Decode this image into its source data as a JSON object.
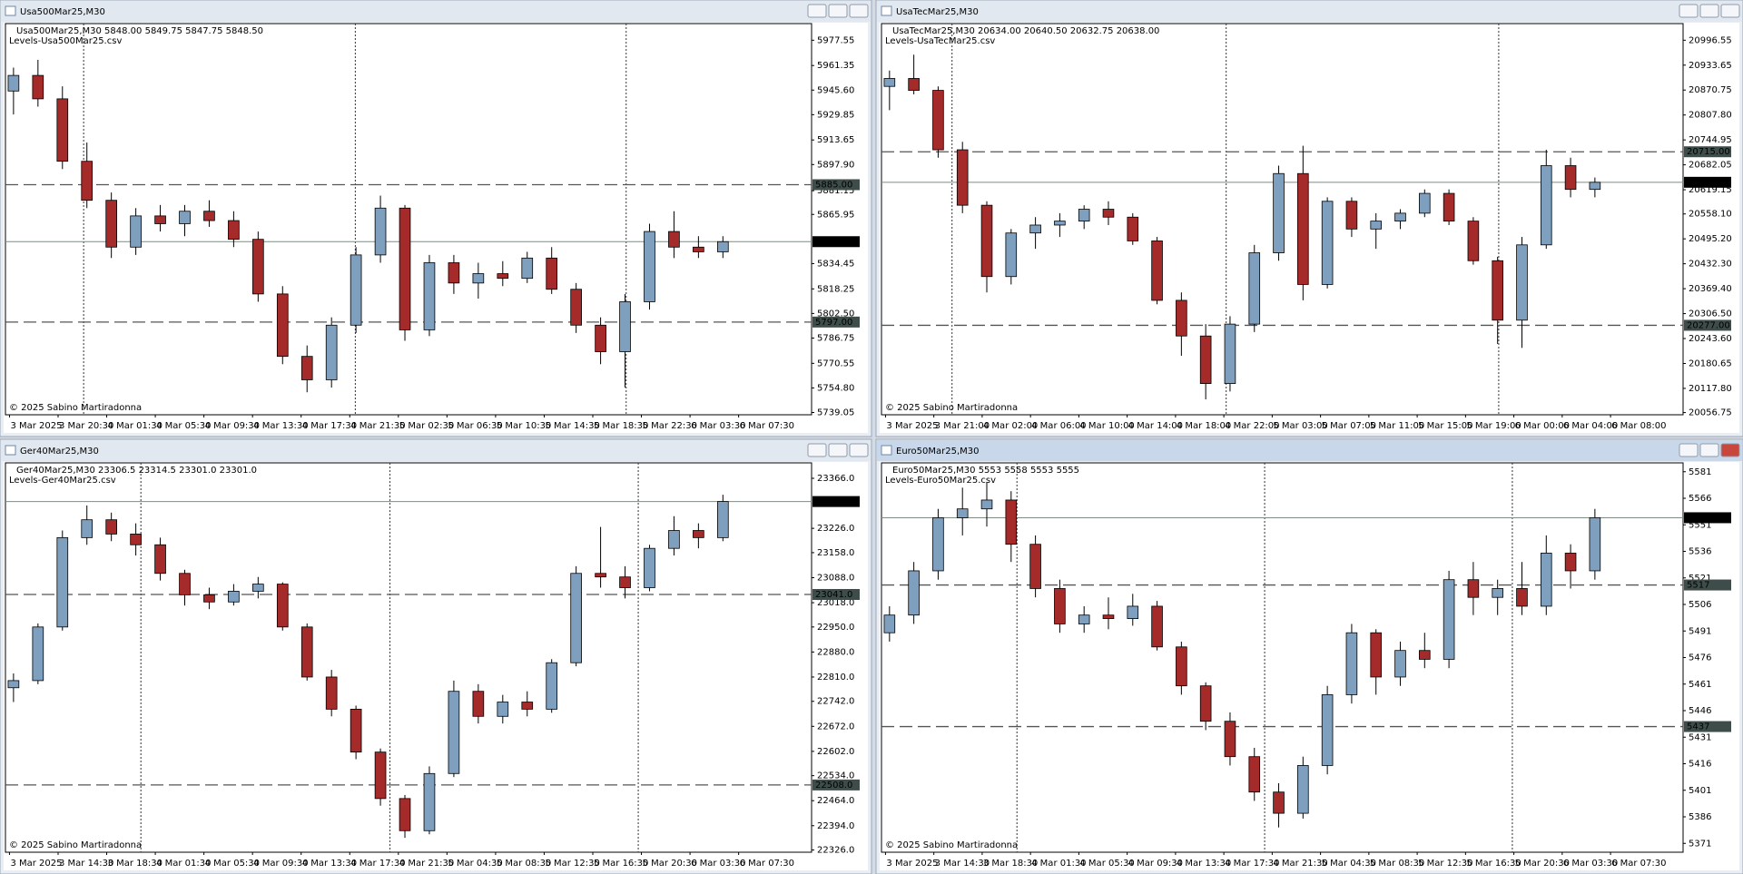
{
  "chart_data": [
    {
      "type": "candlestick",
      "title": "Usa500Mar25,M30",
      "subtitle": "Usa500Mar25,M30  5848.00 5849.75 5847.75 5848.50",
      "indicator": "Levels-Usa500Mar25.csv",
      "annotation": "© 2025 Sabino Martiradonna",
      "up_color": "#7f9fbf",
      "down_color": "#a52a2a",
      "level_color": "#555555",
      "ylim": [
        5737.6,
        5988.2
      ],
      "yticks": [
        {
          "value": 5977.55,
          "label": "5977.55"
        },
        {
          "value": 5961.35,
          "label": "5961.35"
        },
        {
          "value": 5945.6,
          "label": "5945.60"
        },
        {
          "value": 5929.85,
          "label": "5929.85"
        },
        {
          "value": 5913.65,
          "label": "5913.65"
        },
        {
          "value": 5897.9,
          "label": "5897.90"
        },
        {
          "value": 5881.15,
          "label": "5881.15"
        },
        {
          "value": 5865.95,
          "label": "5865.95"
        },
        {
          "value": 5834.45,
          "label": "5834.45"
        },
        {
          "value": 5818.25,
          "label": "5818.25"
        },
        {
          "value": 5802.5,
          "label": "5802.50"
        },
        {
          "value": 5786.75,
          "label": "5786.75"
        },
        {
          "value": 5770.55,
          "label": "5770.55"
        },
        {
          "value": 5754.8,
          "label": "5754.80"
        },
        {
          "value": 5739.05,
          "label": "5739.05"
        }
      ],
      "levels": [
        {
          "value": 5885,
          "label": "5885.00",
          "style": "dashed"
        },
        {
          "value": 5797,
          "label": "5797.00",
          "style": "dashed"
        },
        {
          "value": 5848.5,
          "label": "5848.50",
          "style": "current"
        }
      ],
      "x_labels": [
        "3 Mar 2025",
        "3 Mar 20:30",
        "4 Mar 01:30",
        "4 Mar 05:30",
        "4 Mar 09:30",
        "4 Mar 13:30",
        "4 Mar 17:30",
        "4 Mar 21:30",
        "5 Mar 02:30",
        "5 Mar 06:30",
        "5 Mar 10:30",
        "5 Mar 14:30",
        "5 Mar 18:30",
        "5 Mar 22:30",
        "6 Mar 03:30",
        "6 Mar 07:30"
      ],
      "open": [
        5945,
        5955,
        5940,
        5900,
        5875,
        5845,
        5865,
        5860,
        5868,
        5862,
        5850,
        5815,
        5775,
        5760,
        5795,
        5840,
        5870,
        5792,
        5835,
        5822,
        5828,
        5825,
        5838,
        5818,
        5795,
        5778,
        5810,
        5855,
        5845,
        5842
      ],
      "high": [
        5960,
        5965,
        5948,
        5912,
        5880,
        5870,
        5872,
        5872,
        5875,
        5868,
        5855,
        5820,
        5782,
        5800,
        5845,
        5878,
        5872,
        5840,
        5840,
        5835,
        5836,
        5842,
        5845,
        5822,
        5800,
        5815,
        5860,
        5868,
        5852,
        5852
      ],
      "low": [
        5930,
        5935,
        5895,
        5870,
        5838,
        5840,
        5855,
        5852,
        5858,
        5845,
        5810,
        5770,
        5752,
        5755,
        5790,
        5835,
        5785,
        5788,
        5815,
        5812,
        5820,
        5822,
        5815,
        5790,
        5770,
        5755,
        5805,
        5838,
        5838,
        5838
      ],
      "close": [
        5955,
        5940,
        5900,
        5875,
        5845,
        5865,
        5860,
        5868,
        5862,
        5850,
        5815,
        5775,
        5760,
        5795,
        5840,
        5870,
        5792,
        5835,
        5822,
        5828,
        5825,
        5838,
        5818,
        5795,
        5778,
        5810,
        5855,
        5845,
        5842,
        5848.5
      ]
    },
    {
      "type": "candlestick",
      "title": "UsaTecMar25,M30",
      "subtitle": "UsaTecMar25,M30  20634.00 20640.50 20632.75 20638.00",
      "indicator": "Levels-UsaTecMar25.csv",
      "annotation": "© 2025 Sabino Martiradonna",
      "up_color": "#7f9fbf",
      "down_color": "#a52a2a",
      "level_color": "#555555",
      "ylim": [
        20051.2,
        21038.5
      ],
      "yticks": [
        {
          "value": 20996.55,
          "label": "20996.55"
        },
        {
          "value": 20933.65,
          "label": "20933.65"
        },
        {
          "value": 20870.75,
          "label": "20870.75"
        },
        {
          "value": 20807.8,
          "label": "20807.80"
        },
        {
          "value": 20744.95,
          "label": "20744.95"
        },
        {
          "value": 20682.05,
          "label": "20682.05"
        },
        {
          "value": 20619.15,
          "label": "20619.15"
        },
        {
          "value": 20558.1,
          "label": "20558.10"
        },
        {
          "value": 20495.2,
          "label": "20495.20"
        },
        {
          "value": 20432.3,
          "label": "20432.30"
        },
        {
          "value": 20369.4,
          "label": "20369.40"
        },
        {
          "value": 20306.5,
          "label": "20306.50"
        },
        {
          "value": 20243.6,
          "label": "20243.60"
        },
        {
          "value": 20180.65,
          "label": "20180.65"
        },
        {
          "value": 20117.8,
          "label": "20117.80"
        },
        {
          "value": 20056.75,
          "label": "20056.75"
        }
      ],
      "levels": [
        {
          "value": 20715,
          "label": "20715.00",
          "style": "dashed"
        },
        {
          "value": 20277,
          "label": "20277.00",
          "style": "dashed"
        },
        {
          "value": 20638,
          "label": "20638.00",
          "style": "current"
        }
      ],
      "x_labels": [
        "3 Mar 2025",
        "3 Mar 21:00",
        "4 Mar 02:00",
        "4 Mar 06:00",
        "4 Mar 10:00",
        "4 Mar 14:00",
        "4 Mar 18:00",
        "4 Mar 22:00",
        "5 Mar 03:00",
        "5 Mar 07:00",
        "5 Mar 11:00",
        "5 Mar 15:00",
        "5 Mar 19:00",
        "6 Mar 00:00",
        "6 Mar 04:00",
        "6 Mar 08:00"
      ],
      "open": [
        20880,
        20900,
        20870,
        20720,
        20580,
        20400,
        20510,
        20530,
        20540,
        20570,
        20550,
        20490,
        20340,
        20250,
        20130,
        20280,
        20460,
        20660,
        20380,
        20590,
        20520,
        20540,
        20560,
        20610,
        20540,
        20440,
        20290,
        20480,
        20680,
        20620
      ],
      "high": [
        20920,
        20960,
        20880,
        20740,
        20590,
        20520,
        20550,
        20560,
        20580,
        20590,
        20560,
        20500,
        20360,
        20280,
        20300,
        20480,
        20680,
        20730,
        20600,
        20600,
        20560,
        20570,
        20620,
        20620,
        20550,
        20450,
        20500,
        20720,
        20700,
        20650
      ],
      "low": [
        20820,
        20860,
        20700,
        20560,
        20360,
        20380,
        20470,
        20500,
        20520,
        20530,
        20480,
        20330,
        20200,
        20090,
        20110,
        20260,
        20440,
        20340,
        20370,
        20500,
        20470,
        20520,
        20550,
        20530,
        20430,
        20230,
        20220,
        20470,
        20600,
        20600
      ],
      "close": [
        20900,
        20870,
        20720,
        20580,
        20400,
        20510,
        20530,
        20540,
        20570,
        20550,
        20490,
        20340,
        20250,
        20130,
        20280,
        20460,
        20660,
        20380,
        20590,
        20520,
        20540,
        20560,
        20610,
        20540,
        20440,
        20290,
        20480,
        20680,
        20620,
        20638
      ]
    },
    {
      "type": "candlestick",
      "title": "Ger40Mar25,M30",
      "subtitle": "Ger40Mar25,M30  23306.5 23314.5 23301.0 23301.0",
      "indicator": "Levels-Ger40Mar25.csv",
      "annotation": "© 2025 Sabino Martiradonna",
      "up_color": "#7f9fbf",
      "down_color": "#a52a2a",
      "level_color": "#555555",
      "ylim": [
        22319.8,
        23409.2
      ],
      "yticks": [
        {
          "value": 23366,
          "label": "23366.0"
        },
        {
          "value": 23226,
          "label": "23226.0"
        },
        {
          "value": 23158,
          "label": "23158.0"
        },
        {
          "value": 23088,
          "label": "23088.0"
        },
        {
          "value": 23018,
          "label": "23018.0"
        },
        {
          "value": 22950,
          "label": "22950.0"
        },
        {
          "value": 22880,
          "label": "22880.0"
        },
        {
          "value": 22810,
          "label": "22810.0"
        },
        {
          "value": 22742,
          "label": "22742.0"
        },
        {
          "value": 22672,
          "label": "22672.0"
        },
        {
          "value": 22602,
          "label": "22602.0"
        },
        {
          "value": 22534,
          "label": "22534.0"
        },
        {
          "value": 22464,
          "label": "22464.0"
        },
        {
          "value": 22394,
          "label": "22394.0"
        },
        {
          "value": 22326,
          "label": "22326.0"
        }
      ],
      "levels": [
        {
          "value": 23041,
          "label": "23041.0",
          "style": "dashed"
        },
        {
          "value": 22508,
          "label": "22508.0",
          "style": "dashed"
        },
        {
          "value": 23301,
          "label": "23301.0",
          "style": "current"
        }
      ],
      "x_labels": [
        "3 Mar 2025",
        "3 Mar 14:30",
        "3 Mar 18:30",
        "4 Mar 01:30",
        "4 Mar 05:30",
        "4 Mar 09:30",
        "4 Mar 13:30",
        "4 Mar 17:30",
        "4 Mar 21:30",
        "5 Mar 04:30",
        "5 Mar 08:30",
        "5 Mar 12:30",
        "5 Mar 16:30",
        "5 Mar 20:30",
        "6 Mar 03:30",
        "6 Mar 07:30"
      ],
      "open": [
        22780,
        22800,
        22950,
        23200,
        23250,
        23210,
        23180,
        23100,
        23040,
        23020,
        23050,
        23070,
        22950,
        22810,
        22720,
        22600,
        22470,
        22380,
        22540,
        22770,
        22700,
        22740,
        22720,
        22850,
        23100,
        23090,
        23060,
        23170,
        23220,
        23200
      ],
      "high": [
        22820,
        22960,
        23220,
        23290,
        23270,
        23240,
        23200,
        23110,
        23060,
        23070,
        23090,
        23075,
        22960,
        22830,
        22730,
        22610,
        22480,
        22560,
        22800,
        22790,
        22760,
        22770,
        22860,
        23120,
        23230,
        23120,
        23180,
        23260,
        23240,
        23320
      ],
      "low": [
        22740,
        22790,
        22940,
        23180,
        23190,
        23150,
        23080,
        23010,
        23000,
        23010,
        23030,
        22940,
        22800,
        22700,
        22580,
        22450,
        22360,
        22370,
        22530,
        22680,
        22680,
        22700,
        22710,
        22840,
        23060,
        23030,
        23050,
        23150,
        23170,
        23190
      ],
      "close": [
        22800,
        22950,
        23200,
        23250,
        23210,
        23180,
        23100,
        23040,
        23020,
        23050,
        23070,
        22950,
        22810,
        22720,
        22600,
        22470,
        22380,
        22540,
        22770,
        22700,
        22740,
        22720,
        22850,
        23100,
        23090,
        23060,
        23170,
        23220,
        23200,
        23301
      ]
    },
    {
      "type": "candlestick",
      "title": "Euro50Mar25,M30",
      "subtitle": "Euro50Mar25,M30  5553 5558 5553 5555",
      "indicator": "Levels-Euro50Mar25.csv",
      "annotation": "© 2025 Sabino Martiradonna",
      "up_color": "#7f9fbf",
      "down_color": "#a52a2a",
      "level_color": "#555555",
      "ylim": [
        5366,
        5586
      ],
      "yticks": [
        5581,
        5566,
        5551,
        5536,
        5521,
        5506,
        5491,
        5476,
        5461,
        5446,
        5431,
        5416,
        5401,
        5386,
        5371
      ],
      "levels": [
        {
          "value": 5517,
          "label": "5517",
          "style": "dashed"
        },
        {
          "value": 5437,
          "label": "5437",
          "style": "dashed"
        },
        {
          "value": 5555,
          "label": "5555",
          "style": "current"
        }
      ],
      "x_labels": [
        "3 Mar 2025",
        "3 Mar 14:30",
        "3 Mar 18:30",
        "4 Mar 01:30",
        "4 Mar 05:30",
        "4 Mar 09:30",
        "4 Mar 13:30",
        "4 Mar 17:30",
        "4 Mar 21:30",
        "5 Mar 04:30",
        "5 Mar 08:30",
        "5 Mar 12:30",
        "5 Mar 16:30",
        "5 Mar 20:30",
        "6 Mar 03:30",
        "6 Mar 07:30"
      ],
      "open": [
        5490,
        5500,
        5525,
        5555,
        5560,
        5565,
        5540,
        5515,
        5495,
        5500,
        5498,
        5505,
        5482,
        5460,
        5440,
        5420,
        5400,
        5388,
        5415,
        5455,
        5490,
        5465,
        5480,
        5475,
        5520,
        5510,
        5515,
        5505,
        5535,
        5525
      ],
      "high": [
        5505,
        5530,
        5560,
        5572,
        5575,
        5570,
        5545,
        5520,
        5505,
        5510,
        5512,
        5508,
        5485,
        5462,
        5445,
        5425,
        5405,
        5420,
        5460,
        5495,
        5492,
        5485,
        5490,
        5525,
        5530,
        5520,
        5530,
        5545,
        5540,
        5560
      ],
      "low": [
        5485,
        5495,
        5520,
        5545,
        5550,
        5530,
        5510,
        5490,
        5490,
        5492,
        5494,
        5480,
        5455,
        5435,
        5415,
        5395,
        5380,
        5385,
        5410,
        5450,
        5455,
        5460,
        5470,
        5470,
        5500,
        5500,
        5500,
        5500,
        5515,
        5520
      ],
      "close": [
        5500,
        5525,
        5555,
        5560,
        5565,
        5540,
        5515,
        5495,
        5500,
        5498,
        5505,
        5482,
        5460,
        5440,
        5420,
        5400,
        5388,
        5415,
        5455,
        5490,
        5465,
        5480,
        5475,
        5520,
        5510,
        5515,
        5505,
        5535,
        5525,
        5555
      ]
    }
  ]
}
